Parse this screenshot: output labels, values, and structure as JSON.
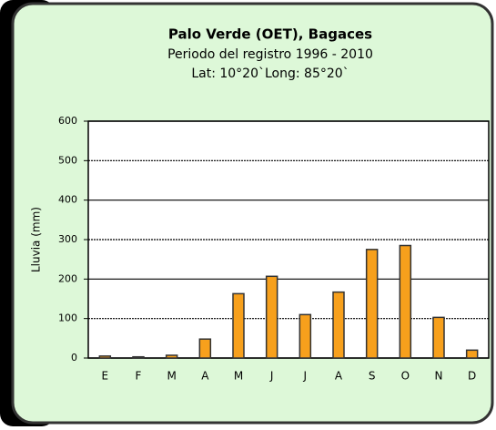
{
  "chart_data": {
    "type": "bar",
    "title": "Palo Verde (OET), Bagaces",
    "subtitle": "Periodo del registro 1996 - 2010",
    "location": "Lat: 10°20`Long: 85°20`",
    "y_label": "Lluvia (mm)",
    "categories": [
      "E",
      "F",
      "M",
      "A",
      "M",
      "J",
      "J",
      "A",
      "S",
      "O",
      "N",
      "D"
    ],
    "values": [
      5,
      3,
      7,
      48,
      163,
      207,
      110,
      167,
      275,
      285,
      103,
      20
    ],
    "color": "#f7a01c",
    "ylim": [
      0,
      600
    ],
    "yticks": [
      0,
      100,
      200,
      300,
      400,
      500,
      600
    ],
    "grid": true
  }
}
